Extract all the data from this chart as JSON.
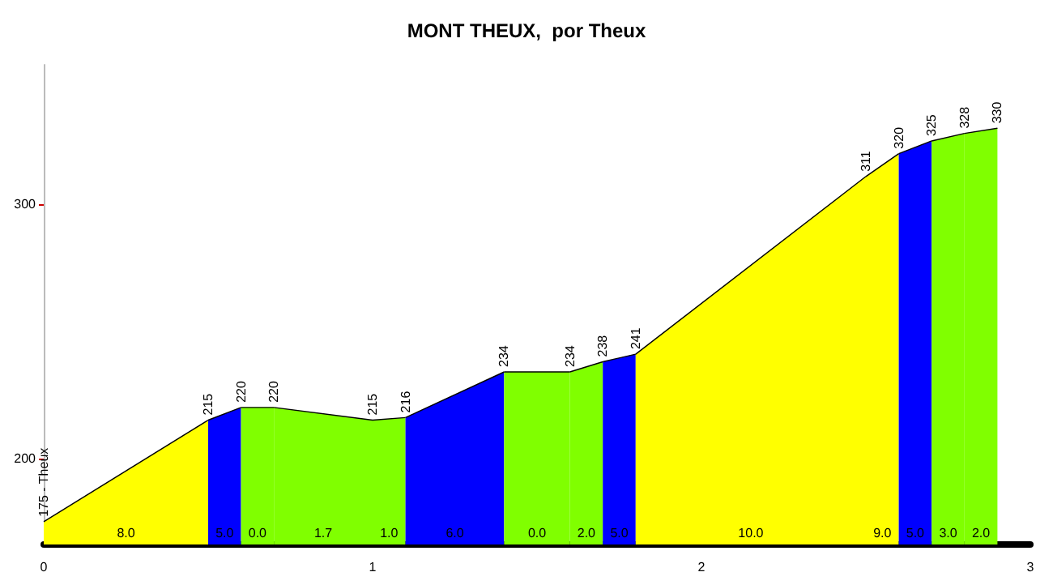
{
  "chart_data": {
    "type": "area",
    "title": "MONT THEUX,  por Theux",
    "xlim": [
      0,
      3
    ],
    "xticks": [
      0,
      1,
      2,
      3
    ],
    "ylim": [
      166,
      355
    ],
    "yticks": [
      200,
      300
    ],
    "series": [
      {
        "color": "#ffff00",
        "x": [
          0,
          0.5
        ],
        "values": [
          175,
          215
        ],
        "value_labels": [
          "175 - Theux",
          "215"
        ]
      },
      {
        "color": "#0000ff",
        "x": [
          0.5,
          0.6
        ],
        "values": [
          215,
          220
        ],
        "value_labels": [
          null,
          "220"
        ]
      },
      {
        "color": "#80ff00",
        "x": [
          0.6,
          0.7
        ],
        "values": [
          220,
          220
        ],
        "value_labels": [
          null,
          "220"
        ]
      },
      {
        "color": "#80ff00",
        "x": [
          0.7,
          1.0
        ],
        "values": [
          220,
          215
        ],
        "value_labels": [
          null,
          "215"
        ]
      },
      {
        "color": "#80ff00",
        "x": [
          1.0,
          1.1
        ],
        "values": [
          215,
          216
        ],
        "value_labels": [
          null,
          "216"
        ]
      },
      {
        "color": "#0000ff",
        "x": [
          1.1,
          1.4
        ],
        "values": [
          216,
          234
        ],
        "value_labels": [
          null,
          "234"
        ]
      },
      {
        "color": "#80ff00",
        "x": [
          1.4,
          1.6
        ],
        "values": [
          234,
          234
        ],
        "value_labels": [
          null,
          "234"
        ]
      },
      {
        "color": "#80ff00",
        "x": [
          1.6,
          1.7
        ],
        "values": [
          234,
          238
        ],
        "value_labels": [
          null,
          "238"
        ]
      },
      {
        "color": "#0000ff",
        "x": [
          1.7,
          1.8
        ],
        "values": [
          238,
          241
        ],
        "value_labels": [
          null,
          "241"
        ]
      },
      {
        "color": "#ffff00",
        "x": [
          1.8,
          2.5
        ],
        "values": [
          241,
          311
        ],
        "value_labels": [
          null,
          "311"
        ]
      },
      {
        "color": "#ffff00",
        "x": [
          2.5,
          2.6
        ],
        "values": [
          311,
          320
        ],
        "value_labels": [
          null,
          "320"
        ]
      },
      {
        "color": "#0000ff",
        "x": [
          2.6,
          2.7
        ],
        "values": [
          320,
          325
        ],
        "value_labels": [
          null,
          "325"
        ]
      },
      {
        "color": "#80ff00",
        "x": [
          2.7,
          2.8
        ],
        "values": [
          325,
          328
        ],
        "value_labels": [
          null,
          "328"
        ]
      },
      {
        "color": "#80ff00",
        "x": [
          2.8,
          2.9
        ],
        "values": [
          328,
          330
        ],
        "value_labels": [
          null,
          "330"
        ]
      }
    ],
    "annotations": [
      {
        "text": "8.0",
        "x": 0.25,
        "y": 168
      },
      {
        "text": "5.0",
        "x": 0.55,
        "y": 168
      },
      {
        "text": "0.0",
        "x": 0.65,
        "y": 168
      },
      {
        "text": "1.7",
        "x": 0.85,
        "y": 168
      },
      {
        "text": "1.0",
        "x": 1.05,
        "y": 168
      },
      {
        "text": "6.0",
        "x": 1.25,
        "y": 168
      },
      {
        "text": "0.0",
        "x": 1.5,
        "y": 168
      },
      {
        "text": "2.0",
        "x": 1.65,
        "y": 168
      },
      {
        "text": "5.0",
        "x": 1.75,
        "y": 168
      },
      {
        "text": "10.0",
        "x": 2.15,
        "y": 168
      },
      {
        "text": "9.0",
        "x": 2.55,
        "y": 168
      },
      {
        "text": "5.0",
        "x": 2.65,
        "y": 168
      },
      {
        "text": "3.0",
        "x": 2.75,
        "y": 168
      },
      {
        "text": "2.0",
        "x": 2.85,
        "y": 168
      }
    ]
  }
}
